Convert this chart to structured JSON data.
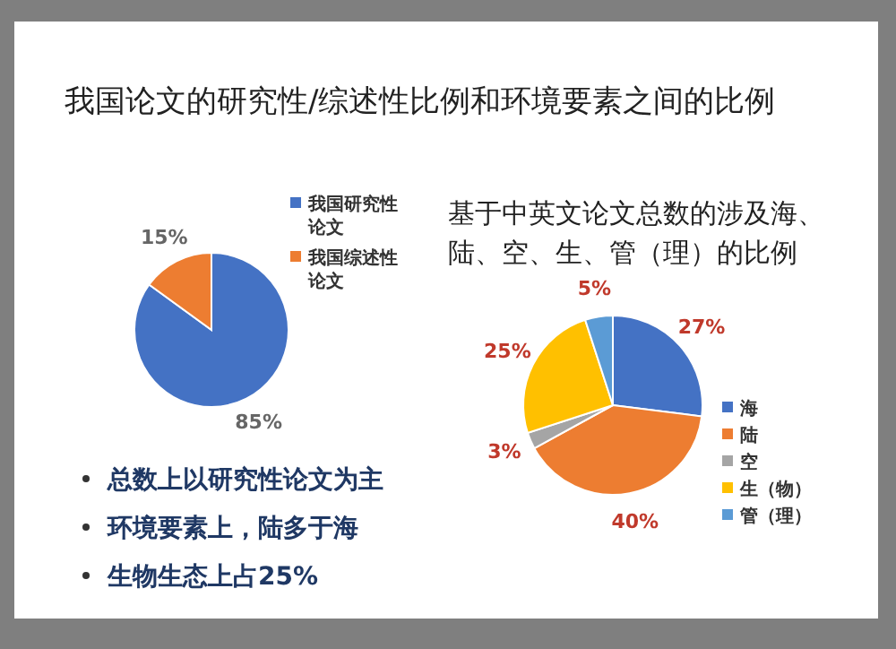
{
  "chart_data": [
    {
      "type": "pie",
      "title": "我国论文的研究性/综述性比例和环境要素之间的比例",
      "categories": [
        "我国研究性论文",
        "我国综述性论文"
      ],
      "values": [
        85,
        15
      ],
      "colors": [
        "#4472c4",
        "#ed7d31"
      ],
      "value_labels": [
        "85%",
        "15%"
      ],
      "legend": "right",
      "annotations": [
        "总数上以研究性论文为主",
        "环境要素上，陆多于海",
        "生物生态上占25%"
      ]
    },
    {
      "type": "pie",
      "title": "基于中英文论文总数的涉及海、陆、空、生、管（理）的比例",
      "categories": [
        "海",
        "陆",
        "空",
        "生（物）",
        "管（理）"
      ],
      "values": [
        27,
        40,
        3,
        25,
        5
      ],
      "colors": [
        "#4472c4",
        "#ed7d31",
        "#a5a5a5",
        "#ffc000",
        "#5b9bd5"
      ],
      "value_labels": [
        "27%",
        "40%",
        "3%",
        "25%",
        "5%"
      ],
      "legend": "right"
    }
  ]
}
